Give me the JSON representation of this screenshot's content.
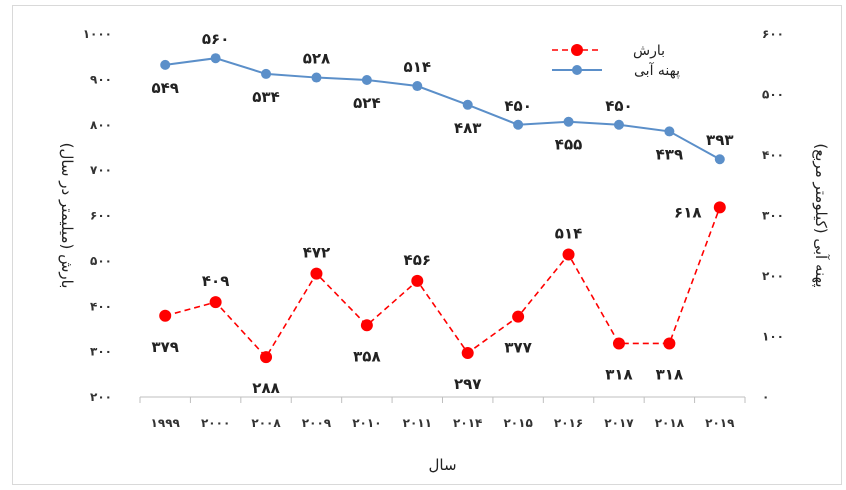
{
  "chart_data": {
    "type": "line",
    "categories": [
      "۱۹۹۹",
      "۲۰۰۰",
      "۲۰۰۸",
      "۲۰۰۹",
      "۲۰۱۰",
      "۲۰۱۱",
      "۲۰۱۴",
      "۲۰۱۵",
      "۲۰۱۶",
      "۲۰۱۷",
      "۲۰۱۸",
      "۲۰۱۹"
    ],
    "xlabel": "سال",
    "ylabel_left": "بارش (میلیمتر در سال)",
    "ylabel_right": "پهنه آبی (کیلومتر مربع)",
    "left_axis": {
      "ylim": [
        200,
        1000
      ],
      "ticks": [
        200,
        300,
        400,
        500,
        600,
        700,
        800,
        900,
        1000
      ],
      "tick_labels": [
        "۲۰۰",
        "۳۰۰",
        "۴۰۰",
        "۵۰۰",
        "۶۰۰",
        "۷۰۰",
        "۸۰۰",
        "۹۰۰",
        "۱۰۰۰"
      ]
    },
    "right_axis": {
      "ylim": [
        0,
        600
      ],
      "ticks": [
        0,
        100,
        200,
        300,
        400,
        500,
        600
      ],
      "tick_labels": [
        "۰",
        "۱۰۰",
        "۲۰۰",
        "۳۰۰",
        "۴۰۰",
        "۵۰۰",
        "۶۰۰"
      ]
    },
    "series": [
      {
        "name": "بارش",
        "axis": "left",
        "color": "#ff0000",
        "style": "dashed",
        "values": [
          379,
          409,
          288,
          472,
          358,
          456,
          297,
          377,
          514,
          318,
          318,
          618
        ],
        "data_labels": [
          "۳۷۹",
          "۴۰۹",
          "۲۸۸",
          "۴۷۲",
          "۳۵۸",
          "۴۵۶",
          "۲۹۷",
          "۳۷۷",
          "۵۱۴",
          "۳۱۸",
          "۳۱۸",
          "۶۱۸"
        ]
      },
      {
        "name": "پهنه آبی",
        "axis": "right",
        "color": "#5b8fc9",
        "style": "solid",
        "values": [
          549,
          560,
          534,
          528,
          524,
          514,
          483,
          450,
          455,
          450,
          439,
          393
        ],
        "data_labels": [
          "۵۴۹",
          "۵۶۰",
          "۵۳۴",
          "۵۲۸",
          "۵۲۴",
          "۵۱۴",
          "۴۸۳",
          "۴۵۰",
          "۴۵۵",
          "۴۵۰",
          "۴۳۹",
          "۳۹۳"
        ]
      }
    ],
    "legend_position": "top-right",
    "grid": false
  }
}
